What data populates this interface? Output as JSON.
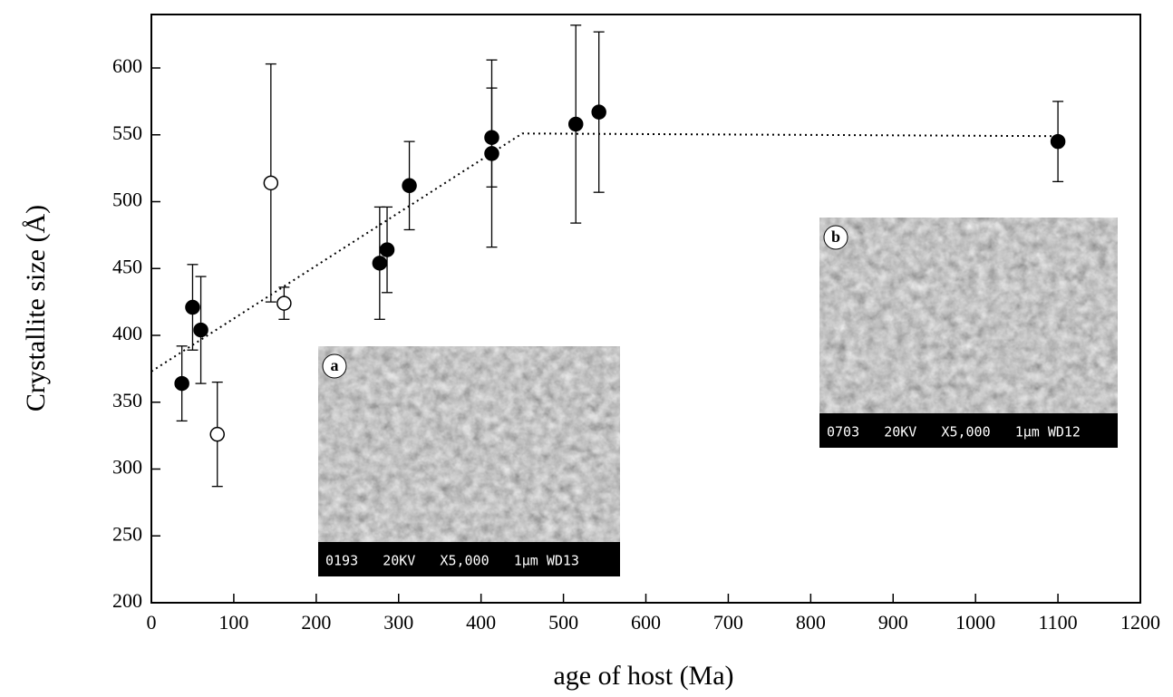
{
  "chart_data": {
    "type": "scatter",
    "xlabel": "age of host (Ma)",
    "ylabel": "Crystallite size (Å)",
    "xlim": [
      0,
      1200
    ],
    "ylim": [
      200,
      640
    ],
    "xticks": [
      0,
      100,
      200,
      300,
      400,
      500,
      600,
      700,
      800,
      900,
      1000,
      1100,
      1200
    ],
    "yticks": [
      200,
      250,
      300,
      350,
      400,
      450,
      500,
      550,
      600
    ],
    "series": [
      {
        "color": "#000000",
        "marker": "filled",
        "x": [
          37,
          50,
          60,
          277,
          286,
          313,
          413,
          413,
          515,
          543,
          1100
        ],
        "values": [
          364,
          421,
          404,
          454,
          464,
          512,
          548,
          536,
          558,
          567,
          545
        ],
        "errors": [
          28,
          32,
          40,
          42,
          32,
          33,
          37,
          70,
          74,
          60,
          30
        ]
      },
      {
        "color": "#000000",
        "marker": "open",
        "x": [
          80,
          145,
          161
        ],
        "values": [
          326,
          514,
          424
        ],
        "errors": [
          39,
          89,
          12
        ]
      }
    ],
    "trend": {
      "x": [
        0,
        450,
        1100
      ],
      "values": [
        373,
        551,
        549
      ],
      "color": "#000000",
      "style": "dotted"
    },
    "insets": [
      {
        "label": "a",
        "caption": "0193   20KV   X5,000   1µm WD13"
      },
      {
        "label": "b",
        "caption": "0703   20KV   X5,000   1µm WD12"
      }
    ]
  }
}
